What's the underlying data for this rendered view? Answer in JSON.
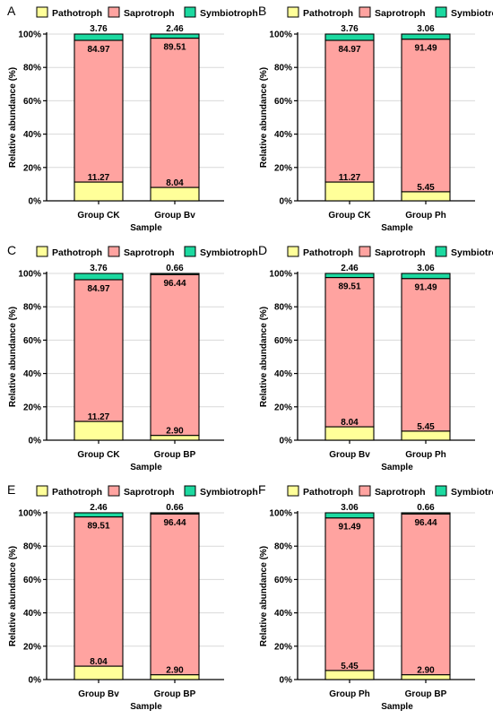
{
  "legend": {
    "items": [
      {
        "name": "Pathotroph",
        "color": "#ffff99"
      },
      {
        "name": "Saprotroph",
        "color": "#ffa3a0"
      },
      {
        "name": "Symbiotroph",
        "color": "#1cd9a0"
      }
    ]
  },
  "chart_data": [
    {
      "panel": "A",
      "type": "bar",
      "stacked": true,
      "categories": [
        "Group CK",
        "Group Bv"
      ],
      "series": [
        {
          "name": "Pathotroph",
          "values": [
            11.27,
            8.04
          ]
        },
        {
          "name": "Saprotroph",
          "values": [
            84.97,
            89.51
          ]
        },
        {
          "name": "Symbiotroph",
          "values": [
            3.76,
            2.46
          ]
        }
      ],
      "xlabel": "Sample",
      "ylabel": "Relative abundance (%)",
      "yticks": [
        "0%",
        "20%",
        "40%",
        "60%",
        "80%",
        "100%"
      ],
      "ylim": [
        0,
        100
      ],
      "legend_position": "top",
      "grid": true
    },
    {
      "panel": "B",
      "type": "bar",
      "stacked": true,
      "categories": [
        "Group CK",
        "Group Ph"
      ],
      "series": [
        {
          "name": "Pathotroph",
          "values": [
            11.27,
            5.45
          ]
        },
        {
          "name": "Saprotroph",
          "values": [
            84.97,
            91.49
          ]
        },
        {
          "name": "Symbiotroph",
          "values": [
            3.76,
            3.06
          ]
        }
      ],
      "xlabel": "Sample",
      "ylabel": "Relative abundance (%)",
      "yticks": [
        "0%",
        "20%",
        "40%",
        "60%",
        "80%",
        "100%"
      ],
      "ylim": [
        0,
        100
      ],
      "legend_position": "top",
      "grid": true
    },
    {
      "panel": "C",
      "type": "bar",
      "stacked": true,
      "categories": [
        "Group CK",
        "Group BP"
      ],
      "series": [
        {
          "name": "Pathotroph",
          "values": [
            11.27,
            2.9
          ]
        },
        {
          "name": "Saprotroph",
          "values": [
            84.97,
            96.44
          ]
        },
        {
          "name": "Symbiotroph",
          "values": [
            3.76,
            0.66
          ]
        }
      ],
      "xlabel": "Sample",
      "ylabel": "Relative abundance (%)",
      "yticks": [
        "0%",
        "20%",
        "40%",
        "60%",
        "80%",
        "100%"
      ],
      "ylim": [
        0,
        100
      ],
      "legend_position": "top",
      "grid": true
    },
    {
      "panel": "D",
      "type": "bar",
      "stacked": true,
      "categories": [
        "Group Bv",
        "Group Ph"
      ],
      "series": [
        {
          "name": "Pathotroph",
          "values": [
            8.04,
            5.45
          ]
        },
        {
          "name": "Saprotroph",
          "values": [
            89.51,
            91.49
          ]
        },
        {
          "name": "Symbiotroph",
          "values": [
            2.46,
            3.06
          ]
        }
      ],
      "xlabel": "Sample",
      "ylabel": "Relative abundance (%)",
      "yticks": [
        "0%",
        "20%",
        "40%",
        "60%",
        "80%",
        "100%"
      ],
      "ylim": [
        0,
        100
      ],
      "legend_position": "top",
      "grid": true
    },
    {
      "panel": "E",
      "type": "bar",
      "stacked": true,
      "categories": [
        "Group Bv",
        "Group BP"
      ],
      "series": [
        {
          "name": "Pathotroph",
          "values": [
            8.04,
            2.9
          ]
        },
        {
          "name": "Saprotroph",
          "values": [
            89.51,
            96.44
          ]
        },
        {
          "name": "Symbiotroph",
          "values": [
            2.46,
            0.66
          ]
        }
      ],
      "xlabel": "Sample",
      "ylabel": "Relative abundance (%)",
      "yticks": [
        "0%",
        "20%",
        "40%",
        "60%",
        "80%",
        "100%"
      ],
      "ylim": [
        0,
        100
      ],
      "legend_position": "top",
      "grid": true
    },
    {
      "panel": "F",
      "type": "bar",
      "stacked": true,
      "categories": [
        "Group Ph",
        "Group BP"
      ],
      "series": [
        {
          "name": "Pathotroph",
          "values": [
            5.45,
            2.9
          ]
        },
        {
          "name": "Saprotroph",
          "values": [
            91.49,
            96.44
          ]
        },
        {
          "name": "Symbiotroph",
          "values": [
            3.06,
            0.66
          ]
        }
      ],
      "xlabel": "Sample",
      "ylabel": "Relative abundance (%)",
      "yticks": [
        "0%",
        "20%",
        "40%",
        "60%",
        "80%",
        "100%"
      ],
      "ylim": [
        0,
        100
      ],
      "legend_position": "top",
      "grid": true
    }
  ]
}
